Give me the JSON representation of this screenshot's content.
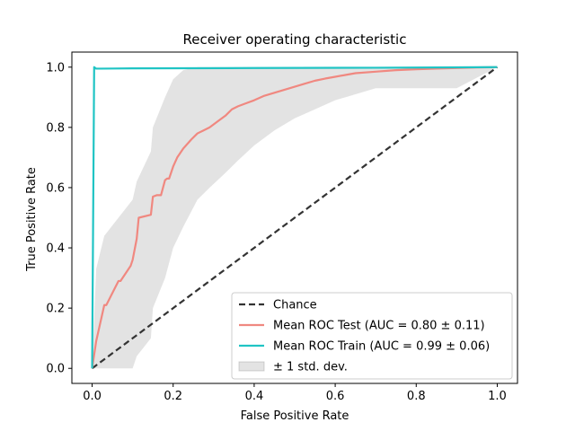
{
  "chart_data": {
    "type": "line",
    "title": "Receiver operating characteristic",
    "xlabel": "False Positive Rate",
    "ylabel": "True Positive Rate",
    "xlim": [
      -0.05,
      1.05
    ],
    "ylim": [
      -0.05,
      1.05
    ],
    "xticks": [
      "0.0",
      "0.2",
      "0.4",
      "0.6",
      "0.8",
      "1.0"
    ],
    "yticks": [
      "0.0",
      "0.2",
      "0.4",
      "0.6",
      "0.8",
      "1.0"
    ],
    "xtick_values": [
      0,
      0.2,
      0.4,
      0.6,
      0.8,
      1.0
    ],
    "ytick_values": [
      0,
      0.2,
      0.4,
      0.6,
      0.8,
      1.0
    ],
    "legend_position": "lower-right",
    "grid": false,
    "series": [
      {
        "name": "Chance",
        "color": "#333333",
        "style": "dashed",
        "x": [
          0,
          1
        ],
        "y": [
          0,
          1
        ]
      },
      {
        "name": "Mean ROC Test (AUC = 0.80 ± 0.11)",
        "color": "#f08880",
        "style": "solid",
        "x": [
          0.0,
          0.01,
          0.01,
          0.03,
          0.035,
          0.065,
          0.07,
          0.095,
          0.1,
          0.11,
          0.115,
          0.145,
          0.15,
          0.16,
          0.17,
          0.18,
          0.185,
          0.19,
          0.2,
          0.21,
          0.225,
          0.245,
          0.26,
          0.275,
          0.29,
          0.31,
          0.33,
          0.345,
          0.36,
          0.38,
          0.4,
          0.425,
          0.45,
          0.475,
          0.5,
          0.525,
          0.55,
          0.575,
          0.6,
          0.625,
          0.65,
          0.7,
          0.75,
          0.8,
          0.85,
          0.9,
          0.95,
          1.0
        ],
        "y": [
          0.0,
          0.09,
          0.09,
          0.21,
          0.21,
          0.29,
          0.29,
          0.34,
          0.36,
          0.43,
          0.5,
          0.51,
          0.57,
          0.575,
          0.575,
          0.625,
          0.63,
          0.63,
          0.67,
          0.7,
          0.73,
          0.76,
          0.78,
          0.79,
          0.8,
          0.82,
          0.84,
          0.86,
          0.87,
          0.88,
          0.89,
          0.905,
          0.915,
          0.925,
          0.935,
          0.945,
          0.955,
          0.962,
          0.968,
          0.974,
          0.98,
          0.985,
          0.99,
          0.993,
          0.995,
          0.997,
          0.999,
          1.0
        ]
      },
      {
        "name": "Mean ROC Train (AUC = 0.99 ± 0.06)",
        "color": "#20c4c4",
        "style": "solid",
        "x": [
          0.0,
          0.005,
          0.01,
          0.02,
          0.1,
          0.4,
          0.7,
          1.0
        ],
        "y": [
          0.0,
          1.0,
          0.995,
          0.995,
          0.996,
          0.997,
          0.998,
          1.0
        ]
      },
      {
        "name": "± 1 std. dev.",
        "color": "#999999",
        "style": "band",
        "x": [
          0.0,
          0.01,
          0.03,
          0.065,
          0.1,
          0.11,
          0.145,
          0.15,
          0.18,
          0.2,
          0.225,
          0.26,
          0.29,
          0.33,
          0.36,
          0.4,
          0.45,
          0.5,
          0.55,
          0.6,
          0.7,
          0.8,
          0.9,
          1.0
        ],
        "upper": [
          0.0,
          0.33,
          0.44,
          0.5,
          0.56,
          0.62,
          0.72,
          0.8,
          0.9,
          0.96,
          0.99,
          1.0,
          1.0,
          1.0,
          1.0,
          1.0,
          1.0,
          1.0,
          1.0,
          1.0,
          1.0,
          1.0,
          1.0,
          1.0
        ],
        "lower": [
          0.0,
          0.0,
          0.0,
          0.0,
          0.0,
          0.04,
          0.1,
          0.2,
          0.3,
          0.4,
          0.47,
          0.56,
          0.6,
          0.65,
          0.69,
          0.74,
          0.79,
          0.83,
          0.86,
          0.89,
          0.93,
          0.93,
          0.93,
          1.0
        ]
      }
    ]
  }
}
